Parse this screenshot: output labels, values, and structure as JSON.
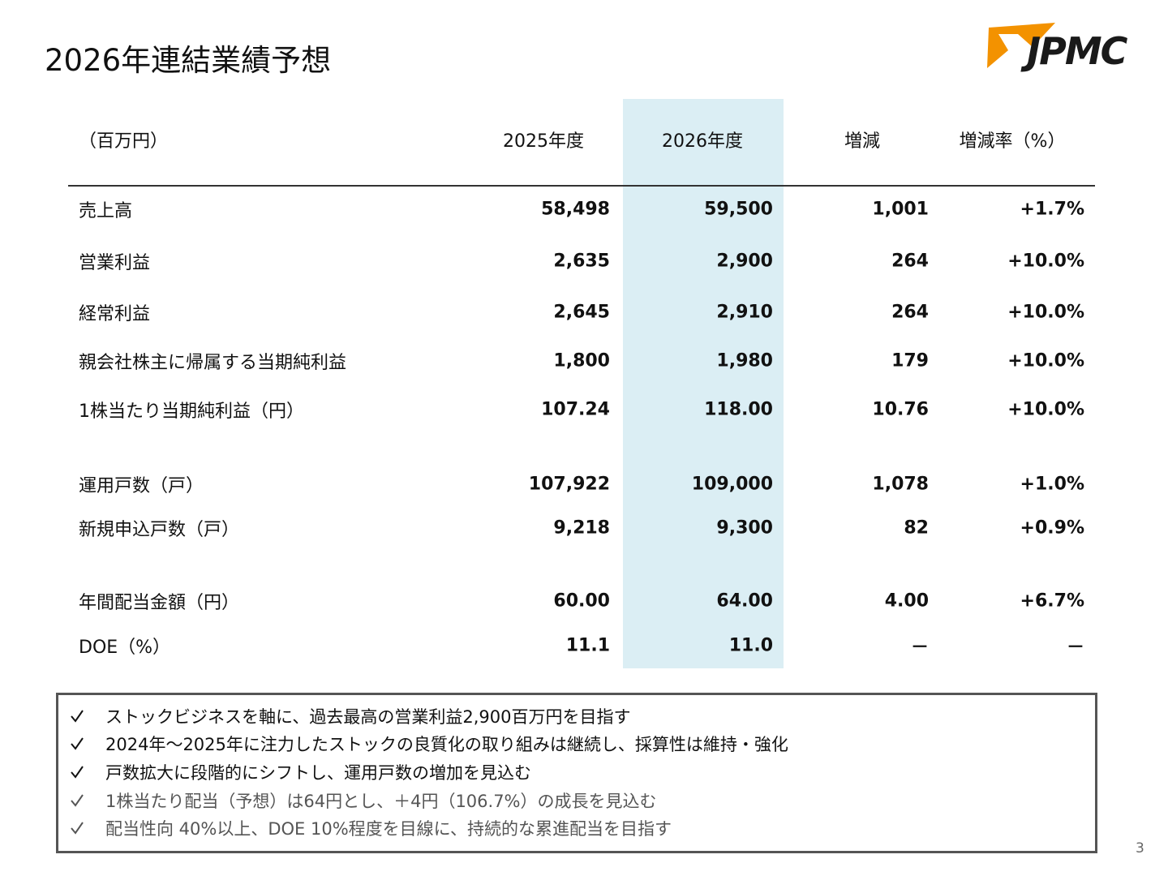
{
  "header": {
    "title": "2026年連結業績予想",
    "logo": "JPMC"
  },
  "table": {
    "columns": [
      "（百万円）",
      "2025年度",
      "2026年度",
      "増減",
      "増減率（%）"
    ],
    "rows": [
      [
        "売上高",
        "58,498",
        "59,500",
        "1,001",
        "+1.7%"
      ],
      [
        "営業利益",
        "2,635",
        "2,900",
        "264",
        "+10.0%"
      ],
      [
        "経常利益",
        "2,645",
        "2,910",
        "264",
        "+10.0%"
      ],
      [
        "親会社株主に帰属する当期純利益",
        "1,800",
        "1,980",
        "179",
        "+10.0%"
      ],
      [
        "1株当たり当期純利益（円）",
        "107.24",
        "118.00",
        "10.76",
        "+10.0%"
      ],
      [
        "運用戸数（戸）",
        "107,922",
        "109,000",
        "1,078",
        "+1.0%"
      ],
      [
        "新規申込戸数（戸）",
        "9,218",
        "9,300",
        "82",
        "+0.9%"
      ],
      [
        "年間配当金額（円）",
        "60.00",
        "64.00",
        "4.00",
        "+6.7%"
      ],
      [
        "DOE（%）",
        "11.1",
        "11.0",
        "－",
        "－"
      ]
    ]
  },
  "notes": [
    "ストックビジネスを軸に、過去最高の営業利益2,900百万円を目指す",
    "2024年～2025年に注力したストックの良質化の取り組みは継続し、採算性は維持・強化",
    "戸数拡大に段階的にシフトし、運用戸数の増加を見込む",
    "1株当たり配当（予想）は64円とし、＋4円（106.7%）の成長を見込む",
    "配当性向 40%以上、DOE 10%程度を目線に、持続的な累進配当を目指す"
  ],
  "page_number": "3"
}
